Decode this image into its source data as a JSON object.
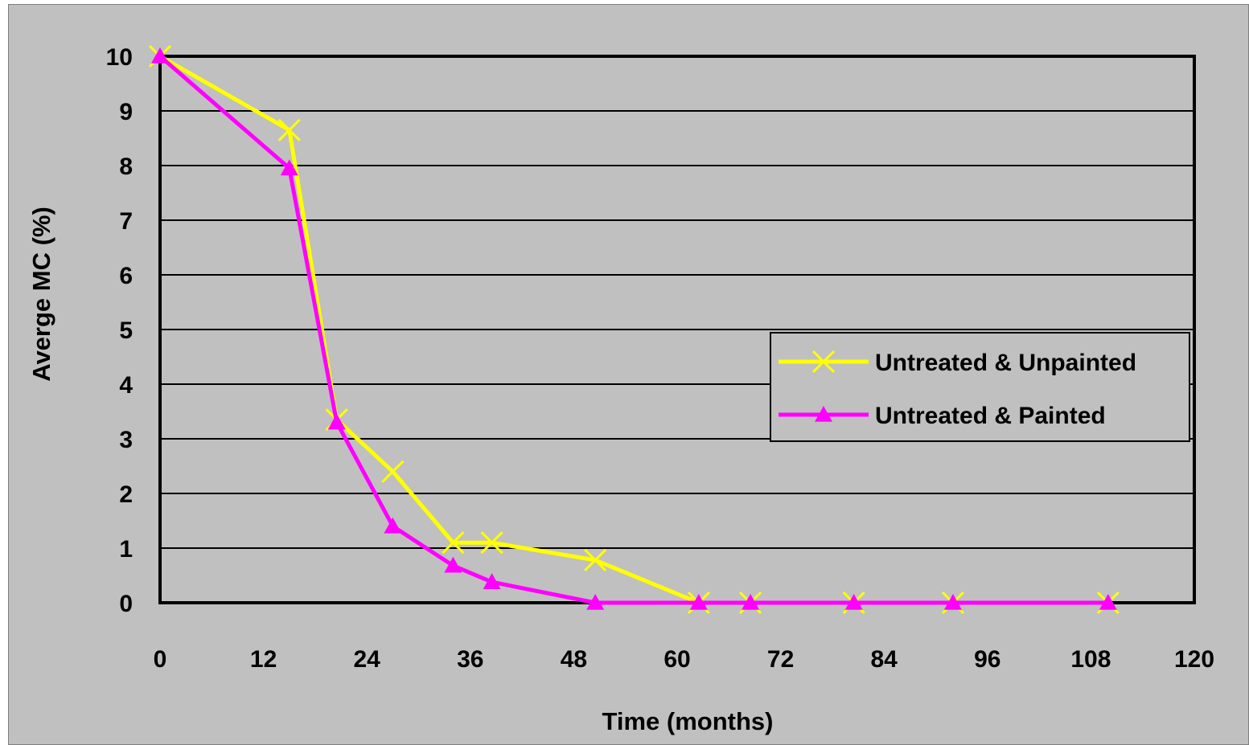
{
  "chart_data": {
    "type": "line",
    "title": "",
    "xlabel": "Time (months)",
    "ylabel": "Averge MC (%)",
    "xlim": [
      0,
      120
    ],
    "ylim": [
      0,
      10
    ],
    "x_ticks": [
      "0",
      "12",
      "24",
      "36",
      "48",
      "60",
      "72",
      "84",
      "96",
      "108",
      "120"
    ],
    "y_ticks": [
      "0",
      "1",
      "2",
      "3",
      "4",
      "5",
      "6",
      "7",
      "8",
      "9",
      "10"
    ],
    "grid": "horizontal",
    "legend_position": "right",
    "series": [
      {
        "name": "Untreated & Unpainted",
        "color": "#ffff00",
        "marker": "x",
        "x": [
          0,
          15,
          20.5,
          27,
          34,
          38.5,
          50.5,
          62.5,
          68.5,
          80.5,
          92,
          110
        ],
        "y": [
          10,
          8.65,
          3.35,
          2.4,
          1.1,
          1.1,
          0.78,
          0,
          0,
          0,
          0,
          0
        ]
      },
      {
        "name": "Untreated & Painted",
        "color": "#ff00ff",
        "marker": "triangle",
        "x": [
          0,
          15,
          20.5,
          27,
          34,
          38.5,
          50.5,
          62.5,
          68.5,
          80.5,
          92,
          110
        ],
        "y": [
          10,
          7.95,
          3.3,
          1.4,
          0.68,
          0.38,
          0,
          0,
          0,
          0,
          0,
          0
        ]
      }
    ]
  }
}
